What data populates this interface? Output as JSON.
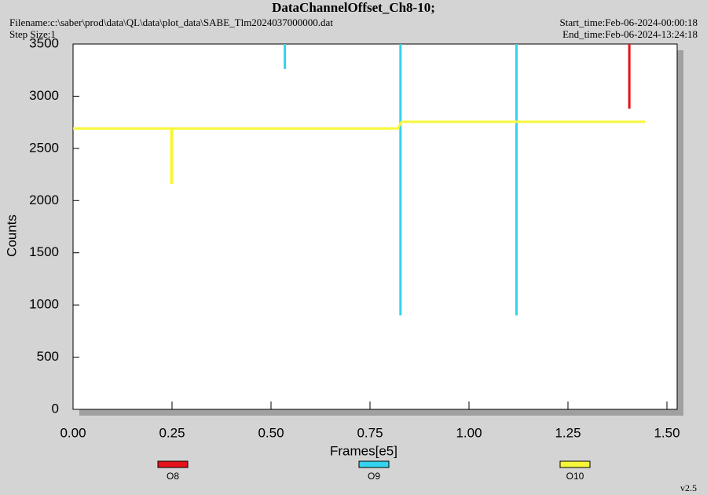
{
  "chart_data": {
    "type": "line",
    "title": "DataChannelOffset_Ch8-10;",
    "filename": "Filename:c:\\saber\\prod\\data\\QL\\data\\plot_data\\SABE_Tlm2024037000000.dat",
    "step_size": "Step Size:1",
    "start_time": "Start_time:Feb-06-2024-00:00:18",
    "end_time": "End_time:Feb-06-2024-13:24:18",
    "version": "v2.5",
    "x_label": "Frames[e5]",
    "y_label": "Counts",
    "xlim": [
      0,
      1.525
    ],
    "ylim": [
      0,
      3500
    ],
    "xticks": [
      {
        "value": 0,
        "label": "0.00"
      },
      {
        "value": 0.25,
        "label": "0.25"
      },
      {
        "value": 0.5,
        "label": "0.50"
      },
      {
        "value": 0.75,
        "label": "0.75"
      },
      {
        "value": 1.0,
        "label": "1.00"
      },
      {
        "value": 1.25,
        "label": "1.25"
      },
      {
        "value": 1.5,
        "label": "1.50"
      }
    ],
    "yticks": [
      0,
      500,
      1000,
      1500,
      2000,
      2500,
      3000,
      3500
    ],
    "series": [
      {
        "name": "O8",
        "color": "#e8121a",
        "x": [
          1.405,
          1.405
        ],
        "values": [
          3500,
          2880
        ]
      },
      {
        "name": "O9",
        "color": "#33d3ee",
        "x": [
          0.535,
          0.535,
          0.535,
          0.827,
          0.827,
          0.827,
          1.12,
          1.12
        ],
        "values": [
          3500,
          3260,
          null,
          3500,
          900,
          null,
          3500,
          900
        ]
      },
      {
        "name": "O10",
        "color": "#f7f73a",
        "x": [
          0,
          0.248,
          0.248,
          0.25,
          0.25,
          0.82,
          0.83,
          1.445
        ],
        "values": [
          2690,
          2690,
          2170,
          2170,
          2690,
          2690,
          2755,
          2755
        ]
      }
    ]
  }
}
